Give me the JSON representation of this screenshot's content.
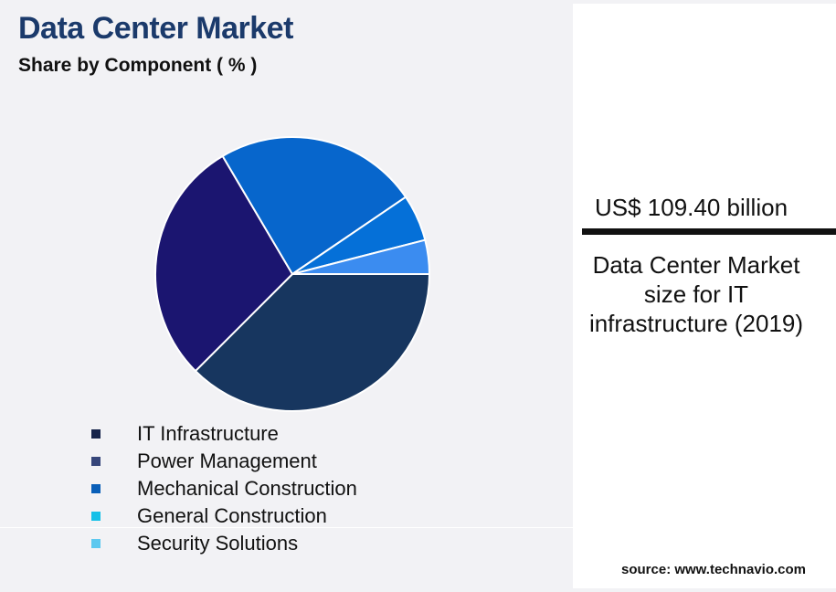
{
  "title": "Data Center Market",
  "subtitle": "Share by Component ( % )",
  "chart_data": {
    "type": "pie",
    "title": "Data Center Market",
    "subtitle": "Share by Component ( % )",
    "legend_position": "bottom-left",
    "slices": [
      {
        "name": "IT Infrastructure",
        "value": 37.5,
        "color": "#17365f"
      },
      {
        "name": "Power Management",
        "value": 29.0,
        "color": "#1b1570"
      },
      {
        "name": "Mechanical Construction",
        "value": 24.0,
        "color": "#0766cc"
      },
      {
        "name": "General Construction",
        "value": 5.5,
        "color": "#0570d8"
      },
      {
        "name": "Security Solutions",
        "value": 4.0,
        "color": "#3b8cf0"
      }
    ]
  },
  "legend": [
    {
      "label": "IT Infrastructure",
      "color": "#16244a"
    },
    {
      "label": "Power Management",
      "color": "#36467a"
    },
    {
      "label": "Mechanical Construction",
      "color": "#0a5fb8"
    },
    {
      "label": "General Construction",
      "color": "#14c0e8"
    },
    {
      "label": "Security Solutions",
      "color": "#5cc8ef"
    }
  ],
  "highlight": {
    "value": "US$ 109.40 billion",
    "description": "Data Center Market size for IT infrastructure (2019)"
  },
  "source": "source: www.technavio.com"
}
